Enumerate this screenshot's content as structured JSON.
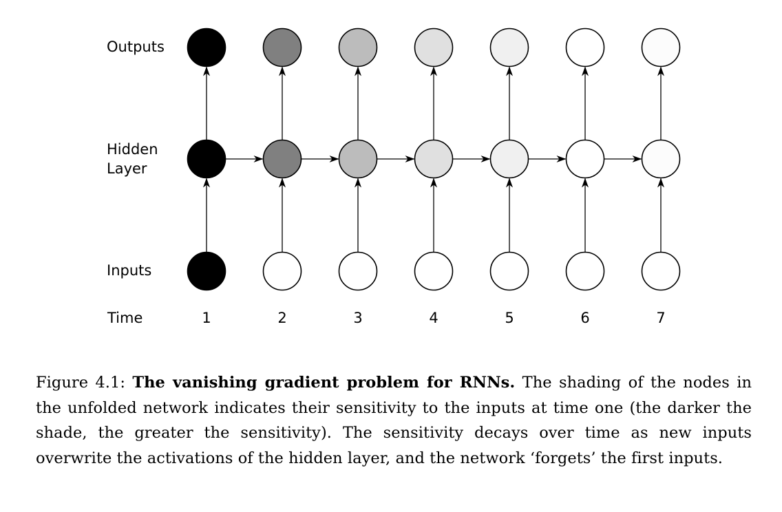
{
  "labels": {
    "outputs": "Outputs",
    "hidden": "Hidden\nLayer",
    "inputs": "Inputs",
    "time": "Time"
  },
  "time_steps": [
    "1",
    "2",
    "3",
    "4",
    "5",
    "6",
    "7"
  ],
  "shading": {
    "outputs": [
      "#000000",
      "#808080",
      "#bcbcbc",
      "#e0e0e0",
      "#f0f0f0",
      "#ffffff",
      "#fcfcfc"
    ],
    "hidden": [
      "#000000",
      "#808080",
      "#bcbcbc",
      "#e0e0e0",
      "#f0f0f0",
      "#ffffff",
      "#fcfcfc"
    ],
    "inputs": [
      "#000000",
      "#ffffff",
      "#ffffff",
      "#ffffff",
      "#ffffff",
      "#ffffff",
      "#ffffff"
    ]
  },
  "caption": {
    "prefix": "Figure 4.1: ",
    "title": "The vanishing gradient problem for RNNs.",
    "body": " The shading of the nodes in the unfolded network indicates their sensitivity to the inputs at time one (the darker the shade, the greater the sensitivity).  The sensitivity decays over time as new inputs overwrite the activations of the hidden layer, and the network ‘forgets’ the first inputs."
  }
}
